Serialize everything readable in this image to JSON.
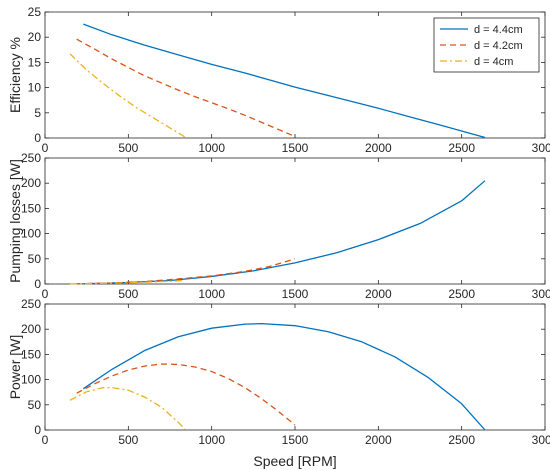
{
  "chart_data": [
    {
      "type": "line",
      "ylabel": "Efficiency %",
      "xlabel": "",
      "xlim": [
        0,
        3000
      ],
      "ylim": [
        0,
        25
      ],
      "xticks": [
        0,
        500,
        1000,
        1500,
        2000,
        2500,
        3000
      ],
      "yticks": [
        0,
        5,
        10,
        15,
        20,
        25
      ],
      "grid": false,
      "legend_position": "top-right",
      "series": [
        {
          "name": "d = 4.4cm",
          "color": "#0072BD",
          "style": "solid",
          "points": [
            [
              230,
              22.6
            ],
            [
              400,
              20.5
            ],
            [
              600,
              18.4
            ],
            [
              800,
              16.5
            ],
            [
              1000,
              14.6
            ],
            [
              1200,
              12.9
            ],
            [
              1500,
              10.1
            ],
            [
              1800,
              7.6
            ],
            [
              2000,
              5.9
            ],
            [
              2200,
              4.1
            ],
            [
              2400,
              2.3
            ],
            [
              2640,
              0.1
            ]
          ]
        },
        {
          "name": "d = 4.2cm",
          "color": "#D95319",
          "style": "dashed",
          "points": [
            [
              190,
              19.6
            ],
            [
              300,
              17.6
            ],
            [
              400,
              15.7
            ],
            [
              500,
              14.0
            ],
            [
              600,
              12.3
            ],
            [
              700,
              10.9
            ],
            [
              800,
              9.5
            ],
            [
              900,
              8.2
            ],
            [
              1000,
              7.0
            ],
            [
              1100,
              5.8
            ],
            [
              1200,
              4.5
            ],
            [
              1300,
              3.1
            ],
            [
              1400,
              1.7
            ],
            [
              1500,
              0.3
            ]
          ]
        },
        {
          "name": "d = 4cm",
          "color": "#EDB120",
          "style": "dashdot",
          "points": [
            [
              150,
              16.7
            ],
            [
              250,
              13.5
            ],
            [
              350,
              10.8
            ],
            [
              450,
              8.3
            ],
            [
              550,
              6.0
            ],
            [
              650,
              4.0
            ],
            [
              750,
              2.0
            ],
            [
              840,
              0.2
            ]
          ]
        }
      ]
    },
    {
      "type": "line",
      "ylabel": "Pumping losses [W]",
      "xlabel": "",
      "xlim": [
        0,
        3000
      ],
      "ylim": [
        0,
        250
      ],
      "xticks": [
        0,
        500,
        1000,
        1500,
        2000,
        2500,
        3000
      ],
      "yticks": [
        0,
        50,
        100,
        150,
        200,
        250
      ],
      "grid": false,
      "series": [
        {
          "name": "d = 4.4cm",
          "color": "#0072BD",
          "style": "solid",
          "points": [
            [
              230,
              0.5
            ],
            [
              500,
              3
            ],
            [
              750,
              7
            ],
            [
              1000,
              15
            ],
            [
              1250,
              26
            ],
            [
              1500,
              42
            ],
            [
              1750,
              62
            ],
            [
              2000,
              88
            ],
            [
              2250,
              120
            ],
            [
              2500,
              165
            ],
            [
              2640,
              205
            ]
          ]
        },
        {
          "name": "d = 4.2cm",
          "color": "#D95319",
          "style": "dashed",
          "points": [
            [
              190,
              0.5
            ],
            [
              400,
              2
            ],
            [
              600,
              5
            ],
            [
              800,
              10
            ],
            [
              1000,
              16
            ],
            [
              1200,
              25
            ],
            [
              1350,
              35
            ],
            [
              1500,
              50
            ]
          ]
        },
        {
          "name": "d = 4cm",
          "color": "#EDB120",
          "style": "dashdot",
          "points": [
            [
              150,
              0.3
            ],
            [
              300,
              1
            ],
            [
              450,
              2
            ],
            [
              600,
              3.5
            ],
            [
              750,
              5.5
            ],
            [
              840,
              7
            ]
          ]
        }
      ]
    },
    {
      "type": "line",
      "ylabel": "Power [W]",
      "xlabel": "Speed [RPM]",
      "xlim": [
        0,
        3000
      ],
      "ylim": [
        0,
        250
      ],
      "xticks": [
        0,
        500,
        1000,
        1500,
        2000,
        2500,
        3000
      ],
      "yticks": [
        0,
        50,
        100,
        150,
        200,
        250
      ],
      "grid": false,
      "series": [
        {
          "name": "d = 4.4cm",
          "color": "#0072BD",
          "style": "solid",
          "points": [
            [
              230,
              82
            ],
            [
              400,
              120
            ],
            [
              600,
              158
            ],
            [
              800,
              185
            ],
            [
              1000,
              202
            ],
            [
              1200,
              210
            ],
            [
              1300,
              211
            ],
            [
              1500,
              207
            ],
            [
              1700,
              195
            ],
            [
              1900,
              175
            ],
            [
              2100,
              145
            ],
            [
              2300,
              104
            ],
            [
              2500,
              52
            ],
            [
              2640,
              0
            ]
          ]
        },
        {
          "name": "d = 4.2cm",
          "color": "#D95319",
          "style": "dashed",
          "points": [
            [
              190,
              73
            ],
            [
              300,
              92
            ],
            [
              400,
              107
            ],
            [
              500,
              119
            ],
            [
              600,
              127
            ],
            [
              700,
              131
            ],
            [
              800,
              130
            ],
            [
              900,
              125
            ],
            [
              1000,
              116
            ],
            [
              1100,
              102
            ],
            [
              1200,
              84
            ],
            [
              1300,
              62
            ],
            [
              1400,
              37
            ],
            [
              1500,
              10
            ]
          ]
        },
        {
          "name": "d = 4cm",
          "color": "#EDB120",
          "style": "dashdot",
          "points": [
            [
              150,
              59
            ],
            [
              250,
              76
            ],
            [
              350,
              84
            ],
            [
              400,
              84
            ],
            [
              500,
              79
            ],
            [
              600,
              65
            ],
            [
              700,
              45
            ],
            [
              800,
              15
            ],
            [
              840,
              2
            ]
          ]
        }
      ]
    }
  ]
}
